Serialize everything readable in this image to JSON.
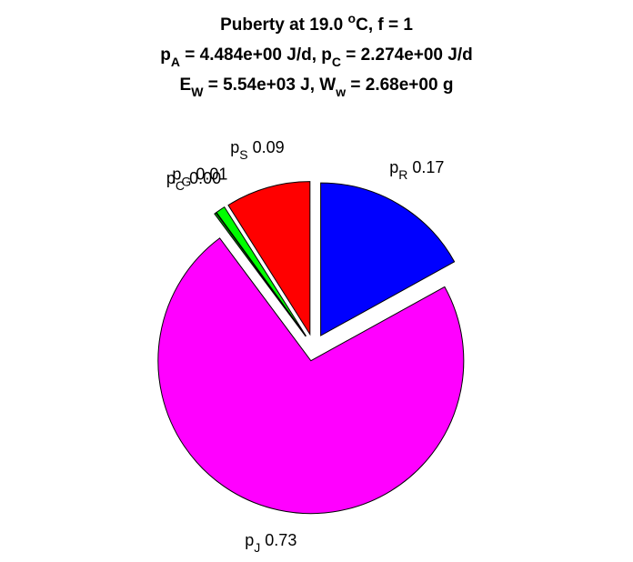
{
  "chart_data": {
    "type": "pie",
    "title": [
      [
        {
          "text": "Puberty at 19.0 "
        },
        {
          "sup": "o"
        },
        {
          "text": "C, f = 1"
        }
      ],
      [
        {
          "text": "p"
        },
        {
          "sub": "A"
        },
        {
          "text": " = 4.484e+00 J/d,  p"
        },
        {
          "sub": "C"
        },
        {
          "text": " = 2.274e+00 J/d"
        }
      ],
      [
        {
          "text": "E"
        },
        {
          "sub": "W"
        },
        {
          "text": " = 5.54e+03 J, W"
        },
        {
          "sub": "w"
        },
        {
          "text": " = 2.68e+00 g"
        }
      ]
    ],
    "labels": [
      {
        "text": "p",
        "sub": "R"
      },
      {
        "text": "p",
        "sub": "J"
      },
      {
        "text": "p",
        "sub": "C"
      },
      {
        "text": "p",
        "sub": "G"
      },
      {
        "text": "p",
        "sub": "S"
      }
    ],
    "values": [
      0.17,
      0.73,
      0.002,
      0.01,
      0.09
    ],
    "value_labels": [
      "0.17",
      "0.73",
      "0.00",
      "0.01",
      "0.09"
    ],
    "colors": [
      "#0000ff",
      "#ff00ff",
      "#00a000",
      "#00ff00",
      "#ff0000"
    ],
    "start_angle": 90,
    "direction": "clockwise",
    "explode": true
  }
}
